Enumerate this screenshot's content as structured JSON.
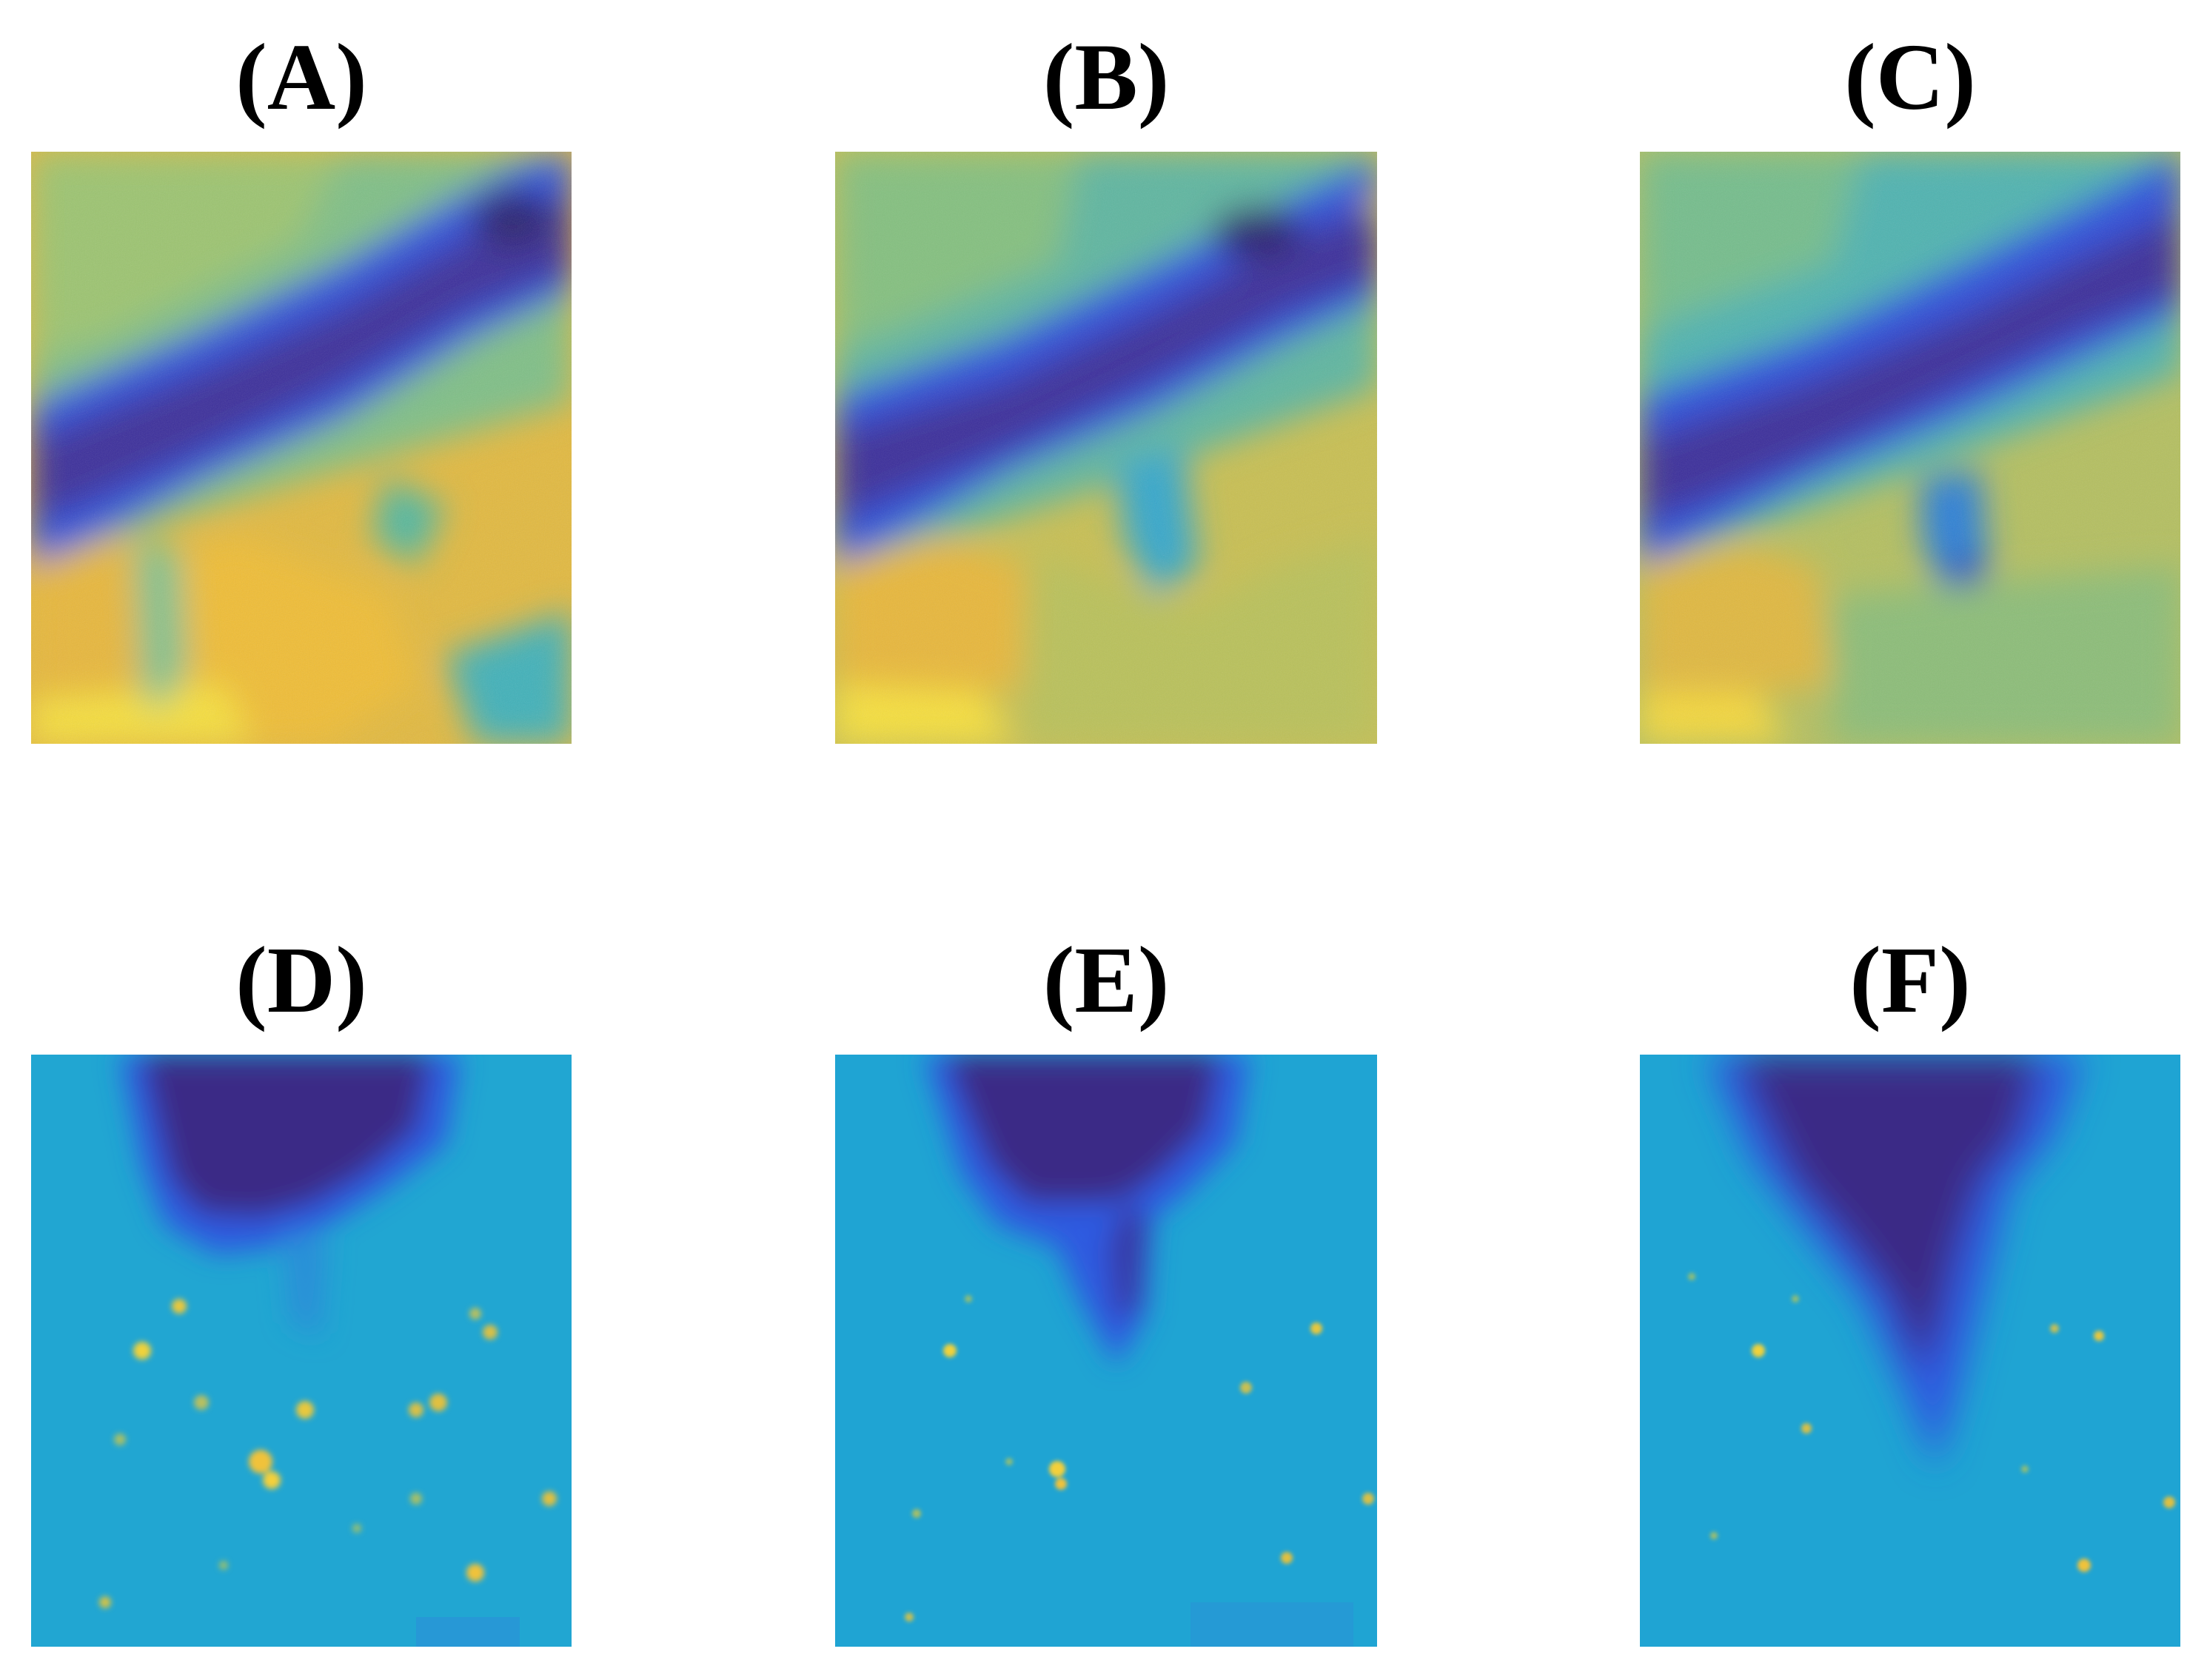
{
  "panels": [
    {
      "label": "(A)",
      "scene": "vessel-horizontal",
      "variant": "A"
    },
    {
      "label": "(B)",
      "scene": "vessel-horizontal",
      "variant": "B"
    },
    {
      "label": "(C)",
      "scene": "vessel-horizontal",
      "variant": "C"
    },
    {
      "label": "(D)",
      "scene": "needle-vertical",
      "variant": "D"
    },
    {
      "label": "(E)",
      "scene": "needle-vertical",
      "variant": "E"
    },
    {
      "label": "(F)",
      "scene": "needle-vertical",
      "variant": "F"
    }
  ],
  "colormap": {
    "deep": "#3d2a86",
    "blue": "#2a55e0",
    "cyan": "#1faad6",
    "green": "#6fc08a",
    "yellow": "#f0c239",
    "bright": "#f8e33a"
  }
}
